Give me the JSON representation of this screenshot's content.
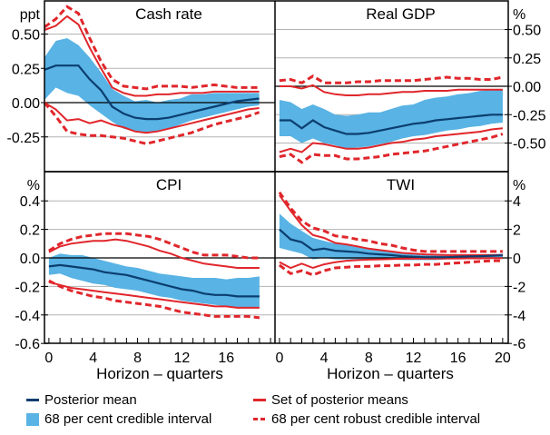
{
  "chart_data": {
    "type": "line",
    "x_label": "Horizon – quarters",
    "colors": {
      "posterior_mean": "#0b3e6f",
      "credible_interval": "#59b3e4",
      "set_of_posterior_means": "#e0262b",
      "robust_interval": "#e0262b",
      "grid": "#b3b3b3"
    },
    "legend": [
      {
        "key": "posterior_mean",
        "label": "Posterior mean",
        "style": "line"
      },
      {
        "key": "set_of_posterior_means",
        "label": "Set of posterior means",
        "style": "line"
      },
      {
        "key": "credible_interval",
        "label": "68 per cent credible interval",
        "style": "box"
      },
      {
        "key": "robust_interval",
        "label": "68 per cent robust credible interval",
        "style": "dash"
      }
    ],
    "panels": [
      {
        "id": "cash-rate",
        "title": "Cash rate",
        "unit": "ppt",
        "axis_side": "left",
        "ylim": [
          -0.5,
          0.75
        ],
        "yticks": [
          0.5,
          0.25,
          0.0,
          -0.25
        ],
        "ytick_labels": [
          "0.50",
          "0.25",
          "0.00",
          "-0.25"
        ],
        "x": [
          0,
          1,
          2,
          3,
          4,
          5,
          6,
          7,
          8,
          9,
          10,
          11,
          12,
          13,
          14,
          15,
          16,
          17,
          18,
          19
        ],
        "posterior_mean": [
          0.24,
          0.27,
          0.27,
          0.27,
          0.17,
          0.09,
          -0.03,
          -0.08,
          -0.11,
          -0.12,
          -0.12,
          -0.11,
          -0.09,
          -0.07,
          -0.05,
          -0.03,
          -0.01,
          0.01,
          0.02,
          0.03
        ],
        "band_upper": [
          0.33,
          0.45,
          0.47,
          0.42,
          0.33,
          0.22,
          0.1,
          0.05,
          0.01,
          0.02,
          0.0,
          0.02,
          0.03,
          0.06,
          0.06,
          0.07,
          0.07,
          0.07,
          0.07,
          0.07
        ],
        "band_lower": [
          0.02,
          0.11,
          0.07,
          0.05,
          -0.02,
          -0.08,
          -0.14,
          -0.19,
          -0.21,
          -0.22,
          -0.21,
          -0.19,
          -0.16,
          -0.13,
          -0.11,
          -0.09,
          -0.07,
          -0.05,
          -0.03,
          -0.02
        ],
        "set_upper": [
          0.53,
          0.56,
          0.63,
          0.57,
          0.4,
          0.25,
          0.11,
          0.07,
          0.05,
          0.05,
          0.06,
          0.06,
          0.07,
          0.07,
          0.07,
          0.08,
          0.08,
          0.08,
          0.08,
          0.08
        ],
        "set_lower": [
          0.0,
          -0.05,
          -0.13,
          -0.12,
          -0.15,
          -0.13,
          -0.16,
          -0.18,
          -0.21,
          -0.22,
          -0.21,
          -0.19,
          -0.17,
          -0.15,
          -0.13,
          -0.11,
          -0.09,
          -0.07,
          -0.05,
          -0.04
        ],
        "robust_upper": [
          0.55,
          0.61,
          0.7,
          0.65,
          0.47,
          0.3,
          0.17,
          0.12,
          0.11,
          0.1,
          0.12,
          0.12,
          0.12,
          0.11,
          0.12,
          0.13,
          0.12,
          0.11,
          0.11,
          0.11
        ],
        "robust_lower": [
          0.0,
          -0.1,
          -0.21,
          -0.23,
          -0.24,
          -0.24,
          -0.25,
          -0.26,
          -0.28,
          -0.3,
          -0.28,
          -0.26,
          -0.24,
          -0.22,
          -0.19,
          -0.16,
          -0.14,
          -0.12,
          -0.1,
          -0.07
        ]
      },
      {
        "id": "real-gdp",
        "title": "Real GDP",
        "unit": "%",
        "axis_side": "right",
        "ylim": [
          -0.75,
          0.75
        ],
        "yticks": [
          0.5,
          0.25,
          0.0,
          -0.25,
          -0.5
        ],
        "ytick_labels": [
          "0.50",
          "0.25",
          "0.00",
          "-0.25",
          "-0.50"
        ],
        "x": [
          0,
          1,
          2,
          3,
          4,
          5,
          6,
          7,
          8,
          9,
          10,
          11,
          12,
          13,
          14,
          15,
          16,
          17,
          18,
          19,
          20
        ],
        "posterior_mean": [
          -0.3,
          -0.3,
          -0.37,
          -0.3,
          -0.36,
          -0.39,
          -0.42,
          -0.42,
          -0.41,
          -0.39,
          -0.37,
          -0.35,
          -0.33,
          -0.32,
          -0.3,
          -0.29,
          -0.28,
          -0.27,
          -0.26,
          -0.25,
          -0.25
        ],
        "band_upper": [
          -0.12,
          -0.14,
          -0.2,
          -0.16,
          -0.2,
          -0.25,
          -0.26,
          -0.25,
          -0.23,
          -0.23,
          -0.2,
          -0.17,
          -0.16,
          -0.12,
          -0.1,
          -0.09,
          -0.07,
          -0.06,
          -0.04,
          -0.03,
          -0.03
        ],
        "band_lower": [
          -0.44,
          -0.44,
          -0.5,
          -0.46,
          -0.5,
          -0.52,
          -0.55,
          -0.54,
          -0.53,
          -0.51,
          -0.49,
          -0.46,
          -0.44,
          -0.43,
          -0.41,
          -0.39,
          -0.38,
          -0.36,
          -0.35,
          -0.33,
          -0.32
        ],
        "set_upper": [
          0.0,
          0.0,
          -0.02,
          0.01,
          -0.05,
          -0.07,
          -0.08,
          -0.08,
          -0.07,
          -0.07,
          -0.06,
          -0.05,
          -0.05,
          -0.04,
          -0.04,
          -0.04,
          -0.03,
          -0.03,
          -0.03,
          -0.03,
          -0.03
        ],
        "set_lower": [
          -0.58,
          -0.55,
          -0.58,
          -0.5,
          -0.51,
          -0.53,
          -0.55,
          -0.55,
          -0.54,
          -0.52,
          -0.5,
          -0.49,
          -0.47,
          -0.46,
          -0.44,
          -0.43,
          -0.42,
          -0.41,
          -0.4,
          -0.38,
          -0.37
        ],
        "robust_upper": [
          0.05,
          0.06,
          0.03,
          0.09,
          0.03,
          0.03,
          0.03,
          0.04,
          0.04,
          0.05,
          0.05,
          0.05,
          0.05,
          0.06,
          0.07,
          0.08,
          0.07,
          0.07,
          0.06,
          0.06,
          0.08
        ],
        "robust_lower": [
          -0.62,
          -0.6,
          -0.67,
          -0.6,
          -0.61,
          -0.61,
          -0.64,
          -0.64,
          -0.63,
          -0.62,
          -0.6,
          -0.59,
          -0.58,
          -0.57,
          -0.55,
          -0.53,
          -0.51,
          -0.49,
          -0.47,
          -0.45,
          -0.42
        ]
      },
      {
        "id": "cpi",
        "title": "CPI",
        "unit": "%",
        "axis_side": "left",
        "ylim": [
          -0.6,
          0.6
        ],
        "yticks": [
          0.4,
          0.2,
          0.0,
          -0.2,
          -0.4,
          -0.6
        ],
        "ytick_labels": [
          "0.4",
          "0.2",
          "0.0",
          "-0.2",
          "-0.4",
          "-0.6"
        ],
        "xticks": [
          0,
          4,
          8,
          12,
          16
        ],
        "x": [
          0,
          1,
          2,
          3,
          4,
          5,
          6,
          7,
          8,
          9,
          10,
          11,
          12,
          13,
          14,
          15,
          16,
          17,
          18,
          19
        ],
        "posterior_mean": [
          -0.06,
          -0.05,
          -0.06,
          -0.07,
          -0.08,
          -0.1,
          -0.11,
          -0.12,
          -0.14,
          -0.16,
          -0.18,
          -0.2,
          -0.22,
          -0.23,
          -0.25,
          -0.26,
          -0.26,
          -0.27,
          -0.27,
          -0.27
        ],
        "band_upper": [
          0.0,
          0.03,
          0.02,
          0.02,
          0.0,
          -0.02,
          -0.04,
          -0.06,
          -0.07,
          -0.09,
          -0.11,
          -0.12,
          -0.13,
          -0.14,
          -0.14,
          -0.14,
          -0.15,
          -0.14,
          -0.14,
          -0.13
        ],
        "band_lower": [
          -0.12,
          -0.11,
          -0.14,
          -0.16,
          -0.18,
          -0.19,
          -0.21,
          -0.22,
          -0.23,
          -0.25,
          -0.27,
          -0.28,
          -0.3,
          -0.31,
          -0.32,
          -0.33,
          -0.34,
          -0.35,
          -0.35,
          -0.35
        ],
        "set_upper": [
          0.04,
          0.08,
          0.1,
          0.11,
          0.12,
          0.12,
          0.13,
          0.12,
          0.1,
          0.08,
          0.05,
          0.03,
          0.0,
          -0.02,
          -0.04,
          -0.05,
          -0.06,
          -0.07,
          -0.07,
          -0.07
        ],
        "set_lower": [
          -0.17,
          -0.19,
          -0.21,
          -0.22,
          -0.23,
          -0.24,
          -0.25,
          -0.26,
          -0.27,
          -0.28,
          -0.29,
          -0.3,
          -0.31,
          -0.32,
          -0.33,
          -0.34,
          -0.34,
          -0.35,
          -0.35,
          -0.35
        ],
        "robust_upper": [
          0.05,
          0.1,
          0.13,
          0.15,
          0.16,
          0.17,
          0.17,
          0.17,
          0.16,
          0.15,
          0.13,
          0.1,
          0.07,
          0.04,
          0.02,
          0.02,
          0.02,
          0.01,
          0.0,
          0.0
        ],
        "robust_lower": [
          -0.16,
          -0.2,
          -0.23,
          -0.25,
          -0.27,
          -0.28,
          -0.3,
          -0.31,
          -0.32,
          -0.33,
          -0.34,
          -0.36,
          -0.38,
          -0.39,
          -0.4,
          -0.41,
          -0.41,
          -0.41,
          -0.41,
          -0.42
        ]
      },
      {
        "id": "twi",
        "title": "TWI",
        "unit": "%",
        "axis_side": "right",
        "ylim": [
          -6,
          6
        ],
        "yticks": [
          4,
          2,
          0,
          -2,
          -4,
          -6
        ],
        "ytick_labels": [
          "4",
          "2",
          "0",
          "-2",
          "-4",
          "-6"
        ],
        "xticks": [
          0,
          4,
          8,
          12,
          16,
          20
        ],
        "x": [
          0,
          1,
          2,
          3,
          4,
          5,
          6,
          7,
          8,
          9,
          10,
          11,
          12,
          13,
          14,
          15,
          16,
          17,
          18,
          19,
          20
        ],
        "posterior_mean": [
          2.0,
          1.3,
          1.1,
          0.55,
          0.65,
          0.5,
          0.45,
          0.4,
          0.3,
          0.25,
          0.2,
          0.12,
          0.08,
          0.05,
          0.05,
          0.05,
          0.08,
          0.1,
          0.12,
          0.15,
          0.18
        ],
        "band_upper": [
          3.1,
          2.4,
          1.9,
          1.4,
          1.2,
          1.0,
          0.9,
          0.75,
          0.6,
          0.5,
          0.4,
          0.3,
          0.25,
          0.2,
          0.18,
          0.18,
          0.2,
          0.2,
          0.22,
          0.25,
          0.3
        ],
        "band_lower": [
          0.7,
          0.5,
          0.3,
          -0.1,
          0.0,
          -0.1,
          -0.1,
          -0.1,
          -0.1,
          -0.1,
          -0.1,
          -0.15,
          -0.15,
          -0.15,
          -0.15,
          -0.1,
          -0.1,
          -0.05,
          -0.05,
          0.0,
          0.0
        ],
        "set_upper": [
          4.4,
          3.3,
          2.3,
          1.6,
          1.4,
          1.05,
          0.95,
          0.8,
          0.65,
          0.55,
          0.45,
          0.35,
          0.3,
          0.25,
          0.22,
          0.2,
          0.2,
          0.2,
          0.2,
          0.2,
          0.2
        ],
        "set_lower": [
          -0.3,
          -0.7,
          -0.4,
          -0.7,
          -0.45,
          -0.3,
          -0.2,
          -0.15,
          -0.12,
          -0.1,
          -0.08,
          -0.06,
          -0.05,
          -0.05,
          -0.05,
          -0.04,
          -0.04,
          -0.03,
          -0.03,
          -0.02,
          -0.02
        ],
        "robust_upper": [
          4.6,
          3.5,
          2.6,
          2.1,
          1.9,
          1.55,
          1.45,
          1.3,
          1.2,
          1.0,
          0.9,
          0.7,
          0.55,
          0.45,
          0.45,
          0.45,
          0.45,
          0.45,
          0.45,
          0.45,
          0.45
        ],
        "robust_lower": [
          -0.5,
          -1.1,
          -0.9,
          -1.2,
          -0.9,
          -0.7,
          -0.65,
          -0.6,
          -0.6,
          -0.55,
          -0.55,
          -0.5,
          -0.5,
          -0.45,
          -0.45,
          -0.4,
          -0.35,
          -0.3,
          -0.25,
          -0.2,
          -0.2
        ]
      }
    ]
  }
}
